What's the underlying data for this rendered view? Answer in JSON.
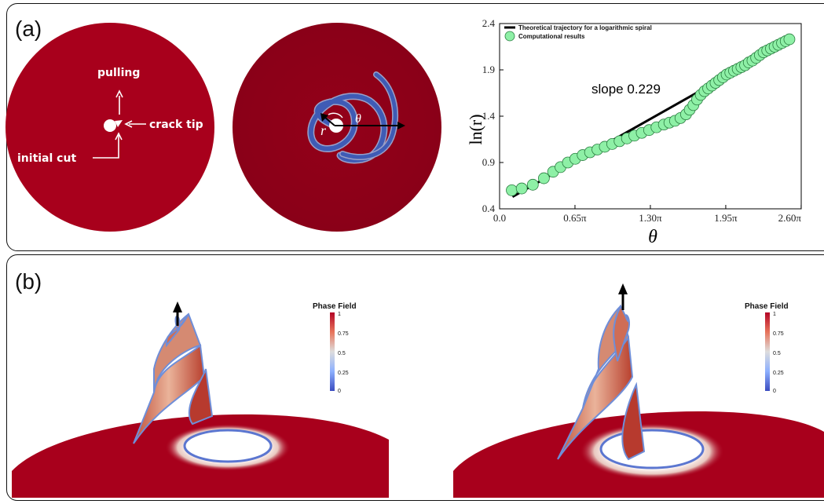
{
  "panel_a": {
    "label": "(a)",
    "disk1": {
      "pulling": "pulling",
      "crack_tip": "crack tip",
      "initial_cut": "initial cut"
    },
    "disk2": {
      "r_symbol": "r",
      "theta_symbol": "θ"
    }
  },
  "panel_b": {
    "label": "(b)",
    "colorbar_title": "Phase Field",
    "colorbar_ticks": [
      "1",
      "0.75",
      "0.5",
      "0.25",
      "0"
    ]
  },
  "colors": {
    "disk_red": "#a8001c",
    "disk_dark_red": "#8c0018",
    "crack_blue": "#3f5bb5",
    "marker_green": "#8ef0a6"
  },
  "chart_data": {
    "type": "scatter",
    "xlabel": "θ",
    "ylabel": "ln(r)",
    "xlim": [
      0.0,
      8.17
    ],
    "ylim": [
      0.4,
      2.4
    ],
    "xticks": [
      0.0,
      2.042,
      4.084,
      6.126,
      8.168
    ],
    "xtick_labels": [
      "0.0",
      "0.65π",
      "1.30π",
      "1.95π",
      "2.60π"
    ],
    "yticks": [
      0.4,
      0.9,
      1.4,
      1.9,
      2.4
    ],
    "ytick_labels": [
      "0.4",
      "0.9",
      "1.4",
      "1.9",
      "2.4"
    ],
    "annotation": "slope 0.229",
    "legend_position": "top-left",
    "series": [
      {
        "name": "Theoretical trajectory for a logarithmic spiral",
        "style": "line",
        "x": [
          0.35,
          7.95
        ],
        "y": [
          0.53,
          2.24
        ]
      },
      {
        "name": "Computational results",
        "style": "markers",
        "x": [
          0.33,
          0.6,
          0.9,
          1.2,
          1.45,
          1.65,
          1.85,
          2.05,
          2.25,
          2.45,
          2.65,
          2.85,
          3.05,
          3.25,
          3.45,
          3.65,
          3.85,
          4.05,
          4.25,
          4.45,
          4.6,
          4.75,
          4.9,
          5.05,
          5.15,
          5.25,
          5.35,
          5.45,
          5.55,
          5.65,
          5.75,
          5.85,
          5.95,
          6.05,
          6.15,
          6.25,
          6.35,
          6.45,
          6.55,
          6.65,
          6.75,
          6.85,
          6.95,
          7.05,
          7.15,
          7.25,
          7.35,
          7.45,
          7.55,
          7.65,
          7.75,
          7.85
        ],
        "y": [
          0.6,
          0.62,
          0.66,
          0.73,
          0.8,
          0.85,
          0.9,
          0.94,
          0.98,
          1.01,
          1.04,
          1.07,
          1.1,
          1.13,
          1.16,
          1.19,
          1.22,
          1.25,
          1.28,
          1.31,
          1.33,
          1.35,
          1.38,
          1.42,
          1.47,
          1.52,
          1.58,
          1.63,
          1.67,
          1.7,
          1.73,
          1.76,
          1.79,
          1.82,
          1.85,
          1.87,
          1.89,
          1.91,
          1.93,
          1.95,
          1.98,
          2.0,
          2.03,
          2.06,
          2.09,
          2.11,
          2.13,
          2.15,
          2.17,
          2.19,
          2.21,
          2.23
        ]
      }
    ]
  }
}
